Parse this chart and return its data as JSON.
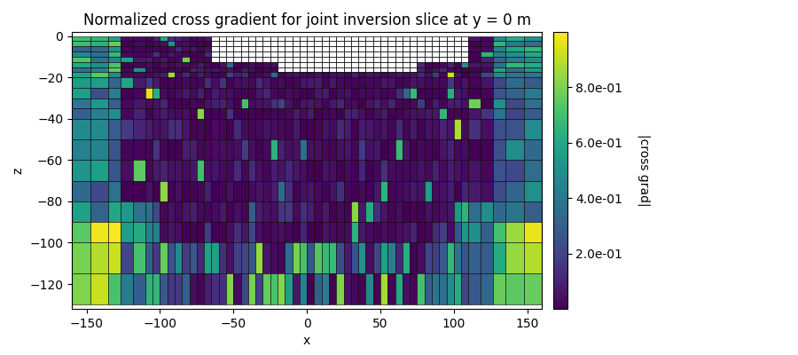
{
  "title": "Normalized cross gradient for joint inversion slice at y = 0 m",
  "xlabel": "x",
  "ylabel": "z",
  "xlim": [
    -160,
    160
  ],
  "ylim": [
    -132,
    2
  ],
  "cbar_label": "|cross grad|",
  "cbar_ticks": [
    0.2,
    0.4,
    0.6,
    0.8
  ],
  "cbar_ticklabels": [
    "2.0e-01",
    "4.0e-01",
    "6.0e-01",
    "8.0e-01"
  ],
  "vmin": 0.0,
  "vmax": 1.0,
  "cmap": "viridis",
  "seed": 7
}
